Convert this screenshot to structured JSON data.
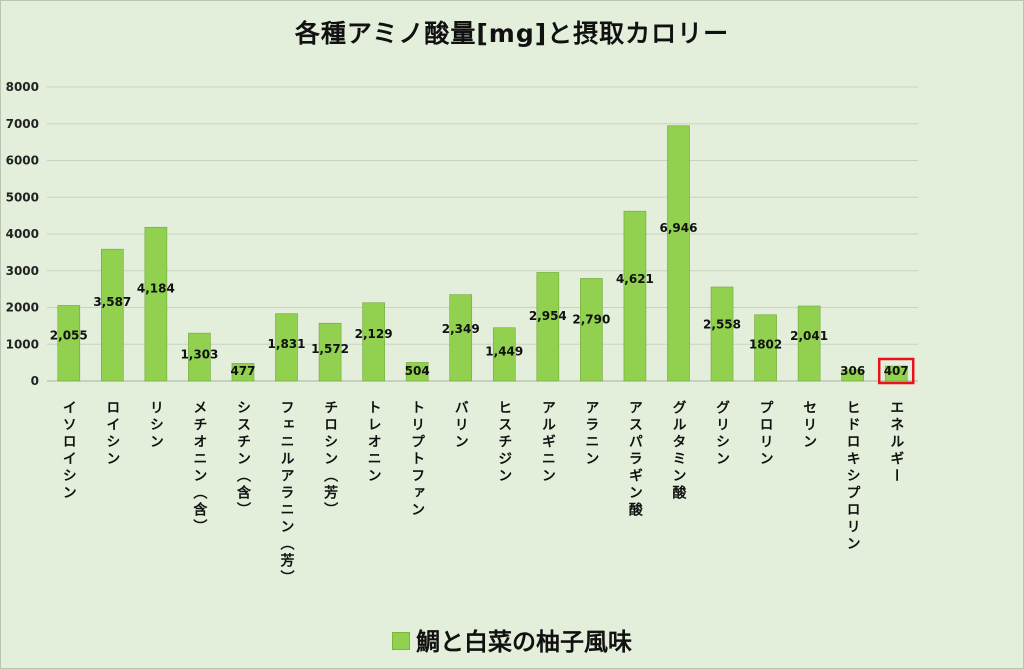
{
  "chart_data": {
    "type": "bar",
    "title": "各種アミノ酸量[mg]と摂取カロリー",
    "xlabel": "",
    "ylabel": "",
    "ylim": [
      0,
      8000
    ],
    "yticks": [
      "0",
      "1000",
      "2000",
      "3000",
      "4000",
      "5000",
      "6000",
      "7000",
      "8000"
    ],
    "grid": true,
    "legend_position": "bottom",
    "categories": [
      "イソロイシン",
      "ロイシン",
      "リシン",
      "メチオニン（含）",
      "シスチン（含）",
      "フェニルアラニン（芳）",
      "チロシン（芳）",
      "トレオニン",
      "トリプトファン",
      "バリン",
      "ヒスチジン",
      "アルギニン",
      "アラニン",
      "アスパラギン酸",
      "グルタミン酸",
      "グリシン",
      "プロリン",
      "セリン",
      "ヒドロキシプロリン",
      "エネルギー"
    ],
    "series": [
      {
        "name": "鯛と白菜の柚子風味",
        "color": "#92d050",
        "values": [
          2055,
          3587,
          4184,
          1303,
          477,
          1831,
          1572,
          2129,
          504,
          2349,
          1449,
          2954,
          2790,
          4621,
          6946,
          2558,
          1802,
          2041,
          306,
          407
        ],
        "labels": [
          "2,055",
          "3,587",
          "4,184",
          "1,303",
          "477",
          "1,831",
          "1,572",
          "2,129",
          "504",
          "2,349",
          "1,449",
          "2,954",
          "2,790",
          "4,621",
          "6,946",
          "2,558",
          "1802",
          "2,041",
          "306",
          "407"
        ]
      }
    ],
    "highlight_category": "エネルギー",
    "highlight_color": "#e8121c"
  }
}
